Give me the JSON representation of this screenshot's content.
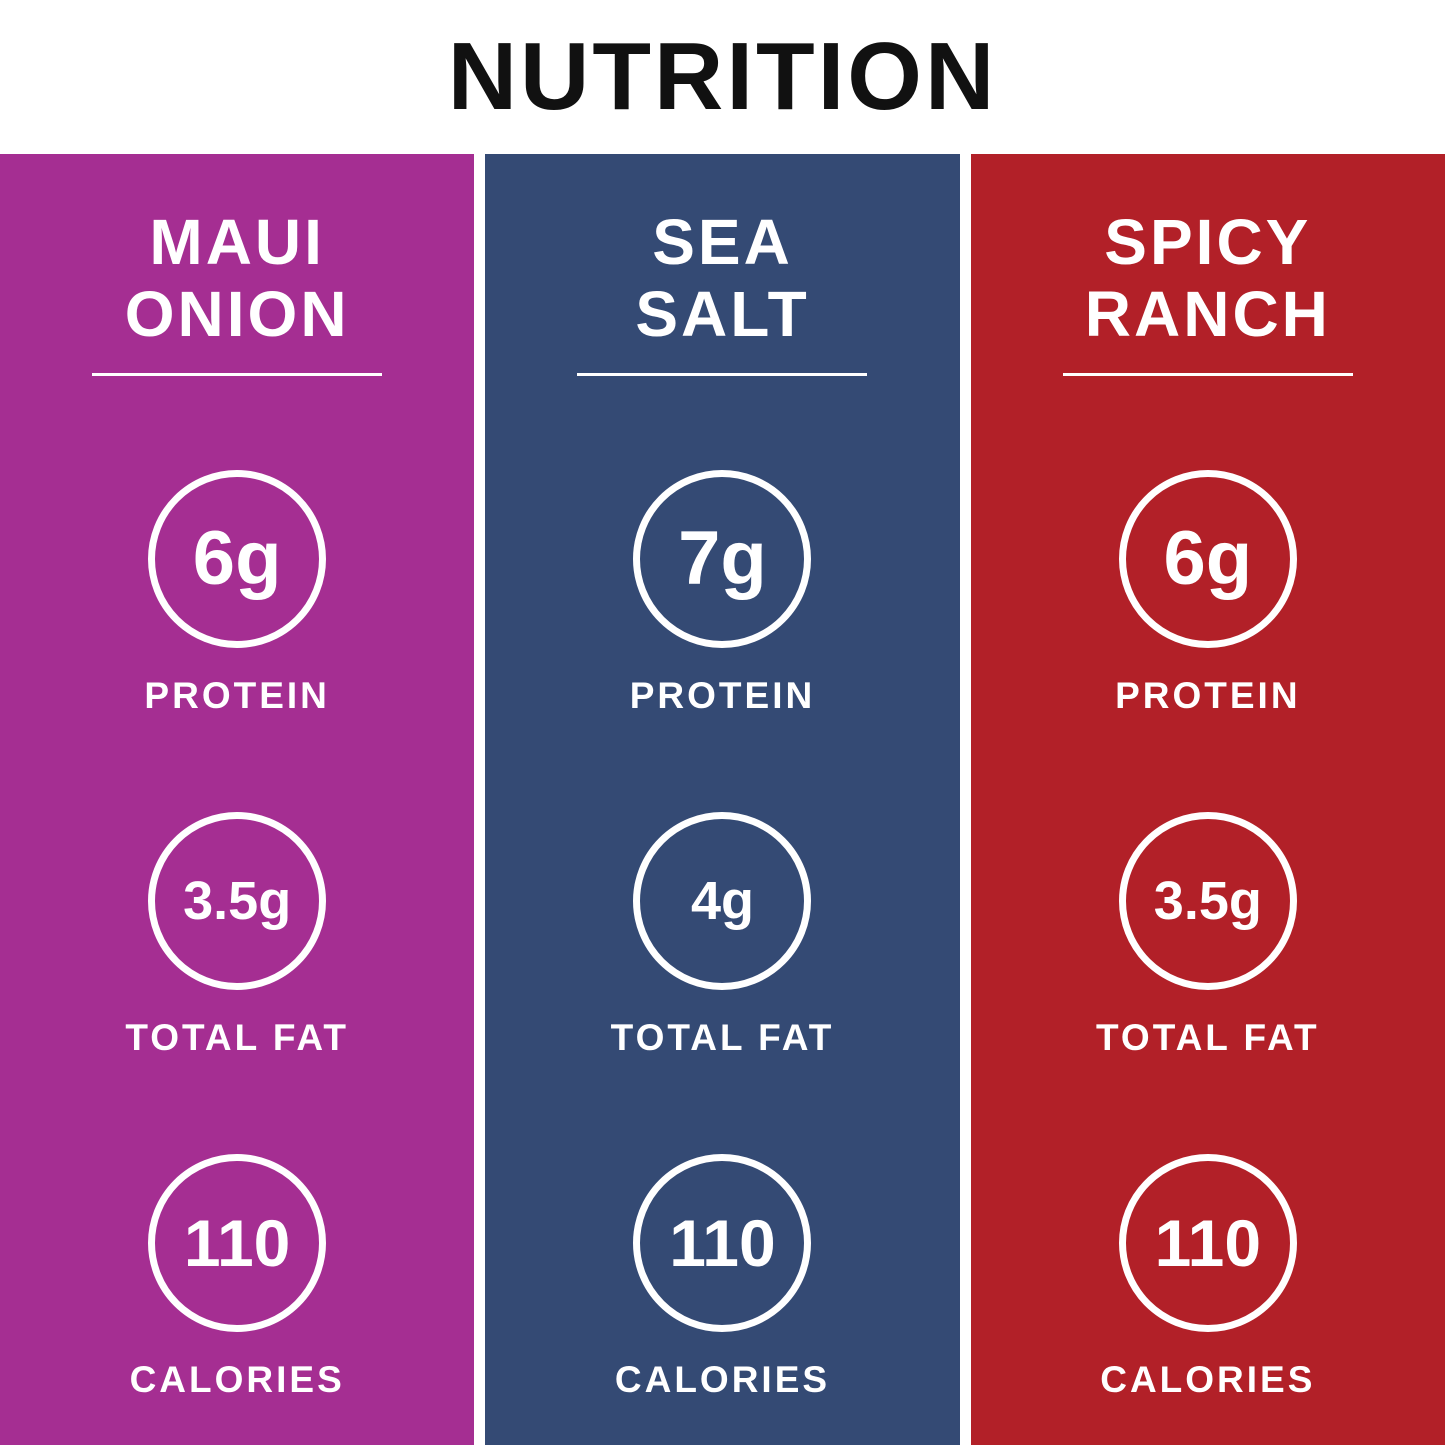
{
  "title": "NUTRITION",
  "colors": {
    "background": "#FFFFFF",
    "title_text": "#111111",
    "maui_onion": "#A52E92",
    "sea_salt": "#344A74",
    "spicy_ranch": "#B22028",
    "text_on_color": "#FFFFFF"
  },
  "columns": [
    {
      "id": "maui-onion",
      "name_line1": "MAUI",
      "name_line2": "ONION",
      "color": "#A52E92",
      "stats": [
        {
          "value": "6g",
          "label": "PROTEIN"
        },
        {
          "value": "3.5g",
          "label": "TOTAL FAT"
        },
        {
          "value": "110",
          "label": "CALORIES"
        }
      ]
    },
    {
      "id": "sea-salt",
      "name_line1": "SEA",
      "name_line2": "SALT",
      "color": "#344A74",
      "stats": [
        {
          "value": "7g",
          "label": "PROTEIN"
        },
        {
          "value": "4g",
          "label": "TOTAL FAT"
        },
        {
          "value": "110",
          "label": "CALORIES"
        }
      ]
    },
    {
      "id": "spicy-ranch",
      "name_line1": "SPICY",
      "name_line2": "RANCH",
      "color": "#B22028",
      "stats": [
        {
          "value": "6g",
          "label": "PROTEIN"
        },
        {
          "value": "3.5g",
          "label": "TOTAL FAT"
        },
        {
          "value": "110",
          "label": "CALORIES"
        }
      ]
    }
  ],
  "chart_data": {
    "type": "table",
    "title": "NUTRITION",
    "categories": [
      "MAUI ONION",
      "SEA SALT",
      "SPICY RANCH"
    ],
    "rows": [
      {
        "label": "PROTEIN",
        "values": [
          "6g",
          "7g",
          "6g"
        ]
      },
      {
        "label": "TOTAL FAT",
        "values": [
          "3.5g",
          "4g",
          "3.5g"
        ]
      },
      {
        "label": "CALORIES",
        "values": [
          "110",
          "110",
          "110"
        ]
      }
    ]
  }
}
